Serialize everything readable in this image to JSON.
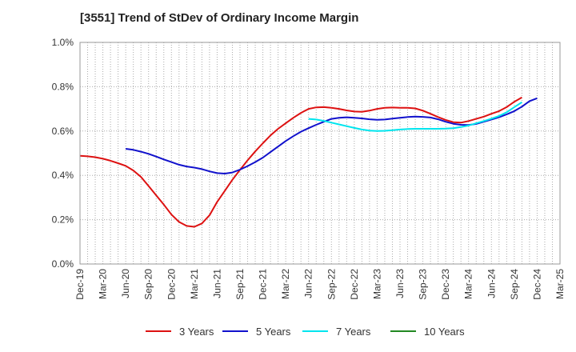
{
  "chart_data": {
    "type": "line",
    "title": "[3551]  Trend of StDev of Ordinary Income Margin",
    "xlabel": "",
    "ylabel": "",
    "ylim": [
      0,
      1.0
    ],
    "y_ticks": [
      "0.0%",
      "0.2%",
      "0.4%",
      "0.6%",
      "0.8%",
      "1.0%"
    ],
    "x_ticks": [
      "Dec-19",
      "Mar-20",
      "Jun-20",
      "Sep-20",
      "Dec-20",
      "Mar-21",
      "Jun-21",
      "Sep-21",
      "Dec-21",
      "Mar-22",
      "Jun-22",
      "Sep-22",
      "Dec-22",
      "Mar-23",
      "Jun-23",
      "Sep-23",
      "Dec-23",
      "Mar-24",
      "Jun-24",
      "Sep-24",
      "Dec-24",
      "Mar-25"
    ],
    "grid": true,
    "legend_position": "bottom",
    "series": [
      {
        "name": "3 Years",
        "color": "#dd1111",
        "start_month_index": 0,
        "values": [
          0.488,
          0.486,
          0.482,
          0.475,
          0.466,
          0.455,
          0.443,
          0.422,
          0.393,
          0.352,
          0.31,
          0.268,
          0.223,
          0.19,
          0.172,
          0.168,
          0.183,
          0.22,
          0.28,
          0.33,
          0.38,
          0.425,
          0.468,
          0.508,
          0.545,
          0.58,
          0.61,
          0.635,
          0.66,
          0.682,
          0.7,
          0.707,
          0.708,
          0.705,
          0.7,
          0.693,
          0.688,
          0.687,
          0.692,
          0.7,
          0.705,
          0.706,
          0.705,
          0.705,
          0.702,
          0.692,
          0.678,
          0.663,
          0.65,
          0.64,
          0.638,
          0.645,
          0.655,
          0.665,
          0.678,
          0.69,
          0.708,
          0.732,
          0.752
        ]
      },
      {
        "name": "5 Years",
        "color": "#1111cc",
        "start_month_index": 6,
        "values": [
          0.52,
          0.515,
          0.507,
          0.497,
          0.485,
          0.472,
          0.46,
          0.448,
          0.44,
          0.435,
          0.428,
          0.418,
          0.41,
          0.408,
          0.413,
          0.426,
          0.442,
          0.46,
          0.48,
          0.505,
          0.53,
          0.555,
          0.577,
          0.597,
          0.613,
          0.628,
          0.642,
          0.655,
          0.66,
          0.662,
          0.66,
          0.657,
          0.653,
          0.651,
          0.652,
          0.656,
          0.66,
          0.663,
          0.665,
          0.664,
          0.661,
          0.653,
          0.642,
          0.633,
          0.628,
          0.627,
          0.632,
          0.642,
          0.652,
          0.662,
          0.675,
          0.69,
          0.71,
          0.735,
          0.748
        ]
      },
      {
        "name": "7 Years",
        "color": "#00e5ee",
        "start_month_index": 30,
        "values": [
          0.655,
          0.652,
          0.646,
          0.638,
          0.63,
          0.622,
          0.614,
          0.607,
          0.602,
          0.6,
          0.601,
          0.604,
          0.607,
          0.609,
          0.61,
          0.61,
          0.61,
          0.61,
          0.611,
          0.613,
          0.618,
          0.625,
          0.635,
          0.645,
          0.656,
          0.668,
          0.685,
          0.708,
          0.73
        ]
      },
      {
        "name": "10 Years",
        "color": "#228822",
        "start_month_index": null,
        "values": []
      }
    ]
  }
}
